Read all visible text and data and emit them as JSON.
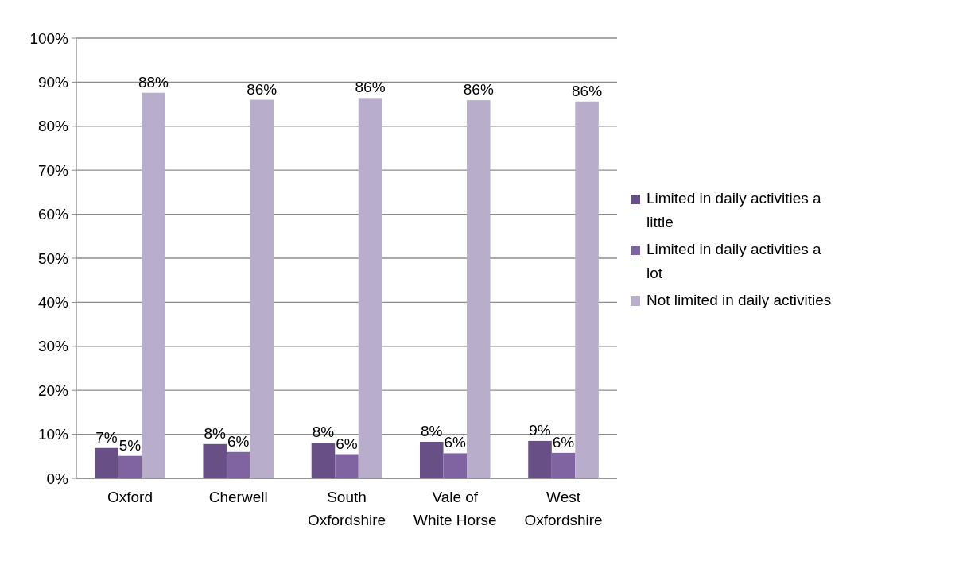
{
  "chart_data": {
    "type": "bar",
    "categories": [
      "Oxford",
      "Cherwell",
      "South Oxfordshire",
      "Vale of White Horse",
      "West Oxfordshire"
    ],
    "series": [
      {
        "name": "Limited in daily activities a little",
        "color": "#684f86",
        "values": [
          6.9,
          7.8,
          8.1,
          8.3,
          8.5
        ],
        "value_labels": [
          "7%",
          "8%",
          "8%",
          "8%",
          "9%"
        ]
      },
      {
        "name": "Limited in daily activities a lot",
        "color": "#8064a2",
        "values": [
          5.1,
          6.0,
          5.5,
          5.7,
          5.8
        ],
        "value_labels": [
          "5%",
          "6%",
          "6%",
          "6%",
          "6%"
        ]
      },
      {
        "name": "Not limited in daily activities",
        "color": "#b8aecb",
        "values": [
          87.6,
          86.0,
          86.4,
          85.9,
          85.6
        ],
        "value_labels": [
          "88%",
          "86%",
          "86%",
          "86%",
          "86%"
        ]
      }
    ],
    "ylim": [
      0,
      100
    ],
    "yticks": [
      {
        "value": 0,
        "label": "0%"
      },
      {
        "value": 10,
        "label": "10%"
      },
      {
        "value": 20,
        "label": "20%"
      },
      {
        "value": 30,
        "label": "30%"
      },
      {
        "value": 40,
        "label": "40%"
      },
      {
        "value": 50,
        "label": "50%"
      },
      {
        "value": 60,
        "label": "60%"
      },
      {
        "value": 70,
        "label": "70%"
      },
      {
        "value": 80,
        "label": "80%"
      },
      {
        "value": 90,
        "label": "90%"
      },
      {
        "value": 100,
        "label": "100%"
      }
    ],
    "grid": "y",
    "legend": "right"
  }
}
